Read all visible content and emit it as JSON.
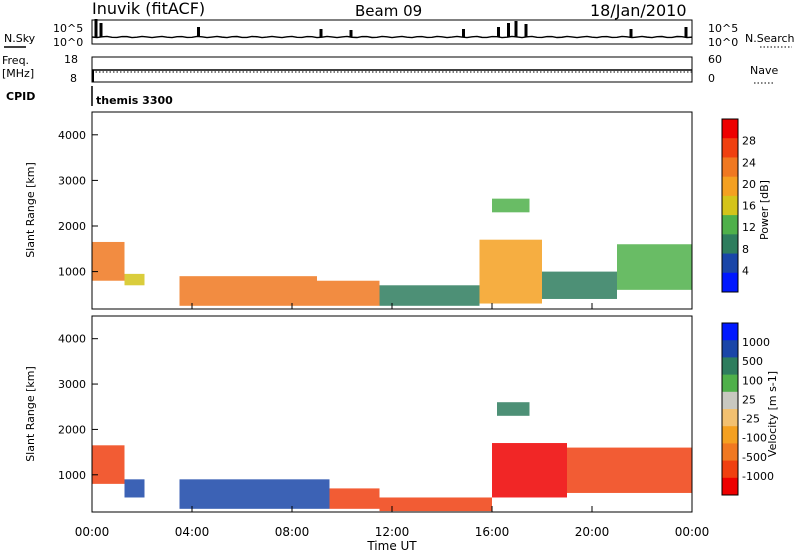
{
  "header": {
    "station": "Inuvik (fitACF)",
    "beam": "Beam 09",
    "date": "18/Jan/2010"
  },
  "top_panels": {
    "nsky_label": "N.Sky",
    "nsky_ticks": [
      "10^5",
      "10^0"
    ],
    "nsearch_label": "N.Search",
    "nsearch_ticks": [
      "10^5",
      "10^0"
    ],
    "freq_label_1": "Freq.",
    "freq_label_2": "[MHz]",
    "freq_ticks": [
      "18",
      "8"
    ],
    "nave_label": "Nave",
    "nave_ticks": [
      "60",
      "0"
    ],
    "cpid_label": "CPID",
    "cpid_value": "themis 3300"
  },
  "x_axis": {
    "label": "Time UT",
    "ticks": [
      "00:00",
      "04:00",
      "08:00",
      "12:00",
      "16:00",
      "20:00",
      "00:00"
    ]
  },
  "colors": {
    "power": [
      "#0018ff",
      "#1a46a8",
      "#2e7d5e",
      "#4fb04a",
      "#d4c41a",
      "#f4a020",
      "#f07820",
      "#f04010",
      "#ee0000"
    ],
    "velocity": [
      "#ee0000",
      "#f04010",
      "#f07820",
      "#f4a020",
      "#f2c070",
      "#c8c8c0",
      "#4fb04a",
      "#2e7d5e",
      "#1a46a8",
      "#0018ff"
    ]
  },
  "chart_data": [
    {
      "type": "heatmap",
      "title": "Power",
      "ylabel": "Slant Range [km]",
      "xlabel": "",
      "ylim": [
        180,
        4500
      ],
      "xlim": [
        0,
        24
      ],
      "yticks": [
        "1000",
        "2000",
        "3000",
        "4000"
      ],
      "colorbar": {
        "label": "Power [dB]",
        "ticks": [
          "4",
          "8",
          "12",
          "16",
          "20",
          "24",
          "28"
        ],
        "range": [
          0,
          32
        ]
      },
      "regions": [
        {
          "t": [
            0.0,
            1.3
          ],
          "r": [
            800,
            1650
          ],
          "value": 22
        },
        {
          "t": [
            1.3,
            2.1
          ],
          "r": [
            700,
            950
          ],
          "value": 16
        },
        {
          "t": [
            3.5,
            9.0
          ],
          "r": [
            250,
            900
          ],
          "value": 24
        },
        {
          "t": [
            9.0,
            11.5
          ],
          "r": [
            250,
            800
          ],
          "value": 22
        },
        {
          "t": [
            11.5,
            15.5
          ],
          "r": [
            250,
            700
          ],
          "value": 10
        },
        {
          "t": [
            15.5,
            18.0
          ],
          "r": [
            300,
            1700
          ],
          "value": 18
        },
        {
          "t": [
            18.0,
            21.0
          ],
          "r": [
            400,
            1000
          ],
          "value": 8
        },
        {
          "t": [
            21.0,
            24.0
          ],
          "r": [
            600,
            1600
          ],
          "value": 12
        },
        {
          "t": [
            16.0,
            17.5
          ],
          "r": [
            2300,
            2600
          ],
          "value": 14
        }
      ]
    },
    {
      "type": "heatmap",
      "title": "Velocity",
      "ylabel": "Slant Range [km]",
      "xlabel": "Time UT",
      "ylim": [
        180,
        4500
      ],
      "xlim": [
        0,
        24
      ],
      "yticks": [
        "1000",
        "2000",
        "3000",
        "4000"
      ],
      "colorbar": {
        "label": "Velocity [m s-1]",
        "ticks": [
          "1000",
          "500",
          "100",
          "25",
          "-25",
          "-100",
          "-500",
          "-1000"
        ],
        "range": [
          -1000,
          1000
        ]
      },
      "regions": [
        {
          "t": [
            0.0,
            1.3
          ],
          "r": [
            800,
            1650
          ],
          "value": -100
        },
        {
          "t": [
            1.3,
            2.1
          ],
          "r": [
            500,
            900
          ],
          "value": 150
        },
        {
          "t": [
            3.5,
            9.5
          ],
          "r": [
            250,
            900
          ],
          "value": 150
        },
        {
          "t": [
            9.5,
            11.5
          ],
          "r": [
            250,
            700
          ],
          "value": -150
        },
        {
          "t": [
            11.5,
            16.0
          ],
          "r": [
            200,
            500
          ],
          "value": -150
        },
        {
          "t": [
            16.0,
            19.0
          ],
          "r": [
            500,
            1700
          ],
          "value": -300
        },
        {
          "t": [
            19.0,
            24.0
          ],
          "r": [
            600,
            1600
          ],
          "value": -200
        },
        {
          "t": [
            16.2,
            17.5
          ],
          "r": [
            2300,
            2600
          ],
          "value": 20
        }
      ]
    }
  ]
}
